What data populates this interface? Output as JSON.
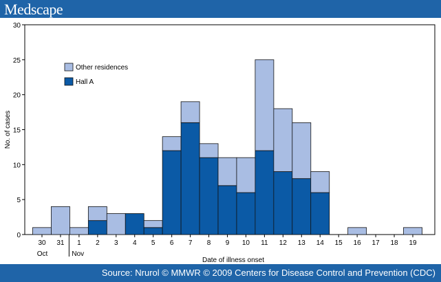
{
  "header": {
    "brand": "Medscape"
  },
  "footer": {
    "source": "Source: Nrurol © MMWR © 2009 Centers for Disease Control and Prevention (CDC)"
  },
  "colors": {
    "hall_a": "#0b5aa6",
    "other": "#a9bde3",
    "brand": "#1f64a8"
  },
  "chart_data": {
    "type": "bar",
    "stacked": true,
    "categories": [
      "30",
      "31",
      "1",
      "2",
      "3",
      "4",
      "5",
      "6",
      "7",
      "8",
      "9",
      "10",
      "11",
      "12",
      "13",
      "14",
      "15",
      "16",
      "17",
      "18",
      "19"
    ],
    "month_labels": [
      "Oct",
      "Nov"
    ],
    "series": [
      {
        "name": "Hall A",
        "values": [
          0,
          0,
          0,
          2,
          0,
          3,
          1,
          12,
          16,
          11,
          7,
          6,
          12,
          9,
          8,
          6,
          0,
          0,
          0,
          0,
          0
        ]
      },
      {
        "name": "Other residences",
        "values": [
          1,
          4,
          1,
          2,
          3,
          0,
          1,
          2,
          3,
          2,
          4,
          5,
          13,
          9,
          8,
          3,
          0,
          1,
          0,
          0,
          1
        ]
      }
    ],
    "legend": [
      "Other residences",
      "Hall A"
    ],
    "xlabel": "Date of illness onset",
    "ylabel": "No. of cases",
    "ylim": [
      0,
      30
    ],
    "yticks": [
      0,
      5,
      10,
      15,
      20,
      25,
      30
    ]
  }
}
